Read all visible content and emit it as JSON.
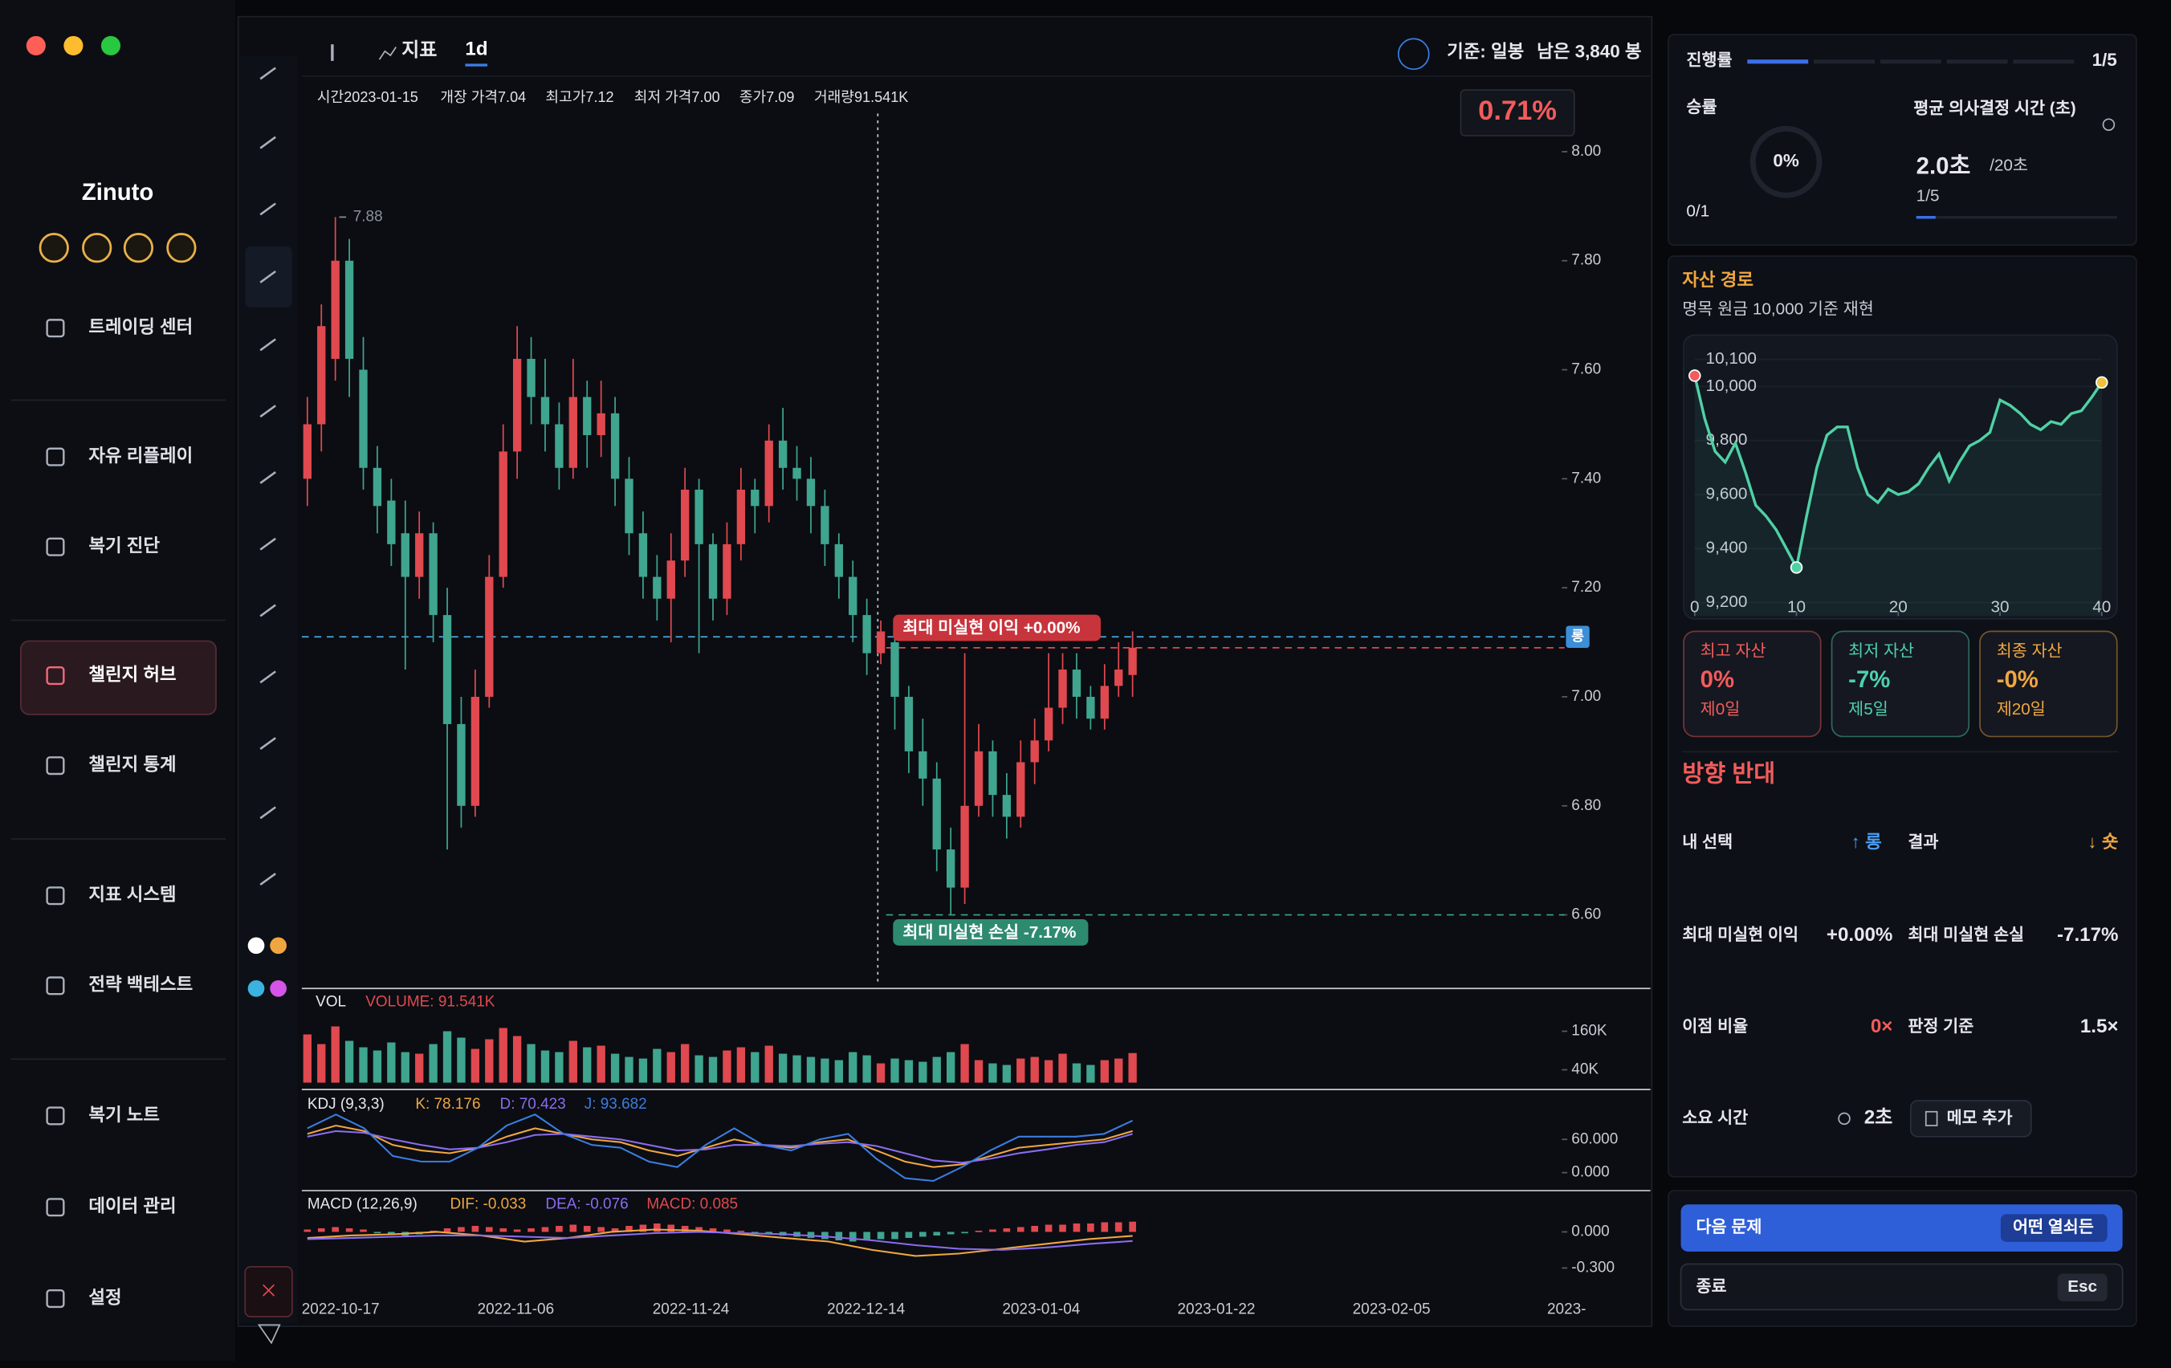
{
  "sidebar": {
    "brand": "Zinuto",
    "nav": [
      "트레이딩 센터",
      "자유 리플레이",
      "복기 진단",
      "챌린지 허브",
      "챌린지 통계",
      "지표 시스템",
      "전략 백테스트",
      "복기 노트",
      "데이터 관리",
      "설정"
    ],
    "active": 3
  },
  "toolbar": {
    "indicator": "지표",
    "interval": "1d",
    "basis": "기준: 일봉",
    "remaining": "남은 3,840 봉"
  },
  "ohlc_info": [
    "시간2023-01-15",
    "개장 가격7.04",
    "최고가7.12",
    "최저 가격7.00",
    "종가7.09",
    "거래량91.541K"
  ],
  "change_badge": "0.71%",
  "price_chart": {
    "type": "candlestick",
    "ylim": [
      6.47,
      8.07
    ],
    "yticks": [
      {
        "value": 8.0,
        "label": "8.00"
      },
      {
        "value": 7.8,
        "label": "7.80"
      },
      {
        "value": 7.6,
        "label": "7.60"
      },
      {
        "value": 7.4,
        "label": "7.40"
      },
      {
        "value": 7.2,
        "label": "7.20"
      },
      {
        "value": 7.0,
        "label": "7.00"
      },
      {
        "value": 6.8,
        "label": "6.80"
      },
      {
        "value": 6.6,
        "label": "6.60"
      }
    ],
    "up_color": "#e0494f",
    "down_color": "#3fa58f",
    "candles": [
      [
        7.4,
        7.55,
        7.35,
        7.5
      ],
      [
        7.5,
        7.72,
        7.45,
        7.68
      ],
      [
        7.62,
        7.88,
        7.58,
        7.8
      ],
      [
        7.8,
        7.84,
        7.55,
        7.62
      ],
      [
        7.6,
        7.66,
        7.38,
        7.42
      ],
      [
        7.42,
        7.46,
        7.3,
        7.35
      ],
      [
        7.36,
        7.4,
        7.24,
        7.28
      ],
      [
        7.3,
        7.36,
        7.05,
        7.22
      ],
      [
        7.22,
        7.34,
        7.18,
        7.3
      ],
      [
        7.3,
        7.32,
        7.1,
        7.15
      ],
      [
        7.15,
        7.2,
        6.72,
        6.95
      ],
      [
        6.95,
        7.0,
        6.76,
        6.8
      ],
      [
        6.8,
        7.05,
        6.78,
        7.0
      ],
      [
        7.0,
        7.26,
        6.98,
        7.22
      ],
      [
        7.22,
        7.5,
        7.2,
        7.45
      ],
      [
        7.45,
        7.68,
        7.4,
        7.62
      ],
      [
        7.62,
        7.66,
        7.5,
        7.55
      ],
      [
        7.55,
        7.62,
        7.45,
        7.5
      ],
      [
        7.5,
        7.54,
        7.38,
        7.42
      ],
      [
        7.42,
        7.62,
        7.4,
        7.55
      ],
      [
        7.55,
        7.58,
        7.42,
        7.48
      ],
      [
        7.48,
        7.58,
        7.44,
        7.52
      ],
      [
        7.52,
        7.55,
        7.35,
        7.4
      ],
      [
        7.4,
        7.44,
        7.26,
        7.3
      ],
      [
        7.3,
        7.34,
        7.18,
        7.22
      ],
      [
        7.22,
        7.26,
        7.14,
        7.18
      ],
      [
        7.18,
        7.3,
        7.1,
        7.25
      ],
      [
        7.25,
        7.42,
        7.22,
        7.38
      ],
      [
        7.38,
        7.4,
        7.08,
        7.28
      ],
      [
        7.28,
        7.3,
        7.14,
        7.18
      ],
      [
        7.18,
        7.32,
        7.15,
        7.28
      ],
      [
        7.28,
        7.42,
        7.25,
        7.38
      ],
      [
        7.38,
        7.4,
        7.3,
        7.35
      ],
      [
        7.35,
        7.5,
        7.32,
        7.47
      ],
      [
        7.47,
        7.53,
        7.38,
        7.42
      ],
      [
        7.42,
        7.46,
        7.36,
        7.4
      ],
      [
        7.4,
        7.44,
        7.3,
        7.35
      ],
      [
        7.35,
        7.38,
        7.24,
        7.28
      ],
      [
        7.28,
        7.3,
        7.18,
        7.22
      ],
      [
        7.22,
        7.25,
        7.1,
        7.15
      ],
      [
        7.15,
        7.18,
        7.04,
        7.08
      ],
      [
        7.08,
        7.14,
        7.06,
        7.12
      ],
      [
        7.1,
        7.12,
        6.94,
        7.0
      ],
      [
        7.0,
        7.02,
        6.86,
        6.9
      ],
      [
        6.9,
        6.96,
        6.8,
        6.85
      ],
      [
        6.85,
        6.88,
        6.68,
        6.72
      ],
      [
        6.72,
        6.76,
        6.6,
        6.65
      ],
      [
        6.65,
        7.08,
        6.62,
        6.8
      ],
      [
        6.8,
        6.95,
        6.78,
        6.9
      ],
      [
        6.9,
        6.92,
        6.78,
        6.82
      ],
      [
        6.82,
        6.86,
        6.74,
        6.78
      ],
      [
        6.78,
        6.92,
        6.76,
        6.88
      ],
      [
        6.88,
        6.96,
        6.84,
        6.92
      ],
      [
        6.92,
        7.08,
        6.9,
        6.98
      ],
      [
        6.98,
        7.08,
        6.95,
        7.05
      ],
      [
        7.05,
        7.08,
        6.96,
        7.0
      ],
      [
        7.0,
        7.02,
        6.94,
        6.96
      ],
      [
        6.96,
        7.06,
        6.94,
        7.02
      ],
      [
        7.02,
        7.1,
        7.0,
        7.05
      ],
      [
        7.04,
        7.12,
        7.0,
        7.09
      ]
    ],
    "high_marker": "7.88",
    "high_marker_value": 7.88,
    "levels": {
      "position": 7.11,
      "entry": 7.09,
      "max_loss": 6.6
    },
    "position_tag": "롱",
    "max_profit_label": "최대 미실현 이익 +0.00%",
    "max_loss_label": "최대 미실현 손실 -7.17%",
    "xticks": [
      "2022-10-17",
      "2022-11-06",
      "2022-11-24",
      "2022-12-14",
      "2023-01-04",
      "2023-01-22",
      "2023-02-05",
      "2023-"
    ]
  },
  "volume_pane": {
    "type": "bar",
    "title": "VOL",
    "legend": "VOLUME: 91.541K",
    "ylim": [
      0,
      280
    ],
    "yticks": [
      {
        "value": 160,
        "label": "160K"
      },
      {
        "value": 40,
        "label": "40K"
      }
    ],
    "values": [
      150,
      120,
      175,
      130,
      110,
      100,
      125,
      95,
      90,
      120,
      160,
      140,
      105,
      135,
      170,
      145,
      120,
      100,
      95,
      130,
      110,
      115,
      90,
      80,
      75,
      105,
      95,
      120,
      85,
      80,
      100,
      110,
      95,
      115,
      90,
      85,
      80,
      75,
      70,
      95,
      85,
      60,
      75,
      70,
      65,
      80,
      95,
      120,
      70,
      60,
      55,
      75,
      80,
      70,
      90,
      60,
      55,
      70,
      75,
      92
    ]
  },
  "kdj_pane": {
    "type": "line",
    "title": "KDJ (9,3,3)",
    "ylim": [
      -27.5,
      142.5
    ],
    "yticks": [
      {
        "value": 60,
        "label": "60.000"
      },
      {
        "value": 0,
        "label": "0.000"
      }
    ],
    "series": [
      {
        "name": "K: 78.176",
        "color": "#f0a640",
        "values": [
          70,
          85,
          75,
          50,
          40,
          35,
          45,
          65,
          80,
          70,
          60,
          55,
          40,
          30,
          45,
          60,
          50,
          45,
          55,
          60,
          40,
          20,
          10,
          15,
          30,
          45,
          50,
          55,
          60,
          75
        ]
      },
      {
        "name": "D: 70.423",
        "color": "#8a6cf0",
        "values": [
          65,
          75,
          72,
          60,
          50,
          42,
          45,
          55,
          68,
          70,
          65,
          60,
          50,
          40,
          42,
          50,
          50,
          48,
          52,
          55,
          48,
          35,
          22,
          18,
          25,
          35,
          42,
          50,
          55,
          70
        ]
      },
      {
        "name": "J: 93.682",
        "color": "#3b7de0",
        "values": [
          80,
          105,
          80,
          30,
          20,
          20,
          45,
          85,
          105,
          70,
          50,
          45,
          20,
          10,
          50,
          80,
          50,
          40,
          60,
          70,
          25,
          -10,
          -15,
          10,
          40,
          65,
          65,
          65,
          70,
          94
        ]
      }
    ]
  },
  "macd_pane": {
    "type": "line",
    "title": "MACD (12,26,9)",
    "ylim": [
      -0.52,
      0.32
    ],
    "yticks": [
      {
        "value": 0,
        "label": "0.000"
      },
      {
        "value": -0.3,
        "label": "-0.300"
      }
    ],
    "series": [
      {
        "name": "DIF: -0.033",
        "color": "#f0a640",
        "values": [
          -0.05,
          -0.03,
          -0.02,
          0.0,
          -0.03,
          -0.08,
          -0.05,
          0.0,
          0.02,
          0.01,
          -0.02,
          -0.05,
          -0.08,
          -0.15,
          -0.2,
          -0.18,
          -0.14,
          -0.1,
          -0.06,
          -0.033
        ]
      },
      {
        "name": "DEA: -0.076",
        "color": "#8a6cf0",
        "values": [
          -0.06,
          -0.05,
          -0.04,
          -0.03,
          -0.03,
          -0.04,
          -0.05,
          -0.03,
          -0.01,
          0.0,
          -0.01,
          -0.02,
          -0.04,
          -0.07,
          -0.11,
          -0.14,
          -0.15,
          -0.13,
          -0.1,
          -0.076
        ]
      }
    ],
    "histogram": {
      "name": "MACD: 0.085",
      "color": "#e0494f",
      "values": [
        0.02,
        0.03,
        0.04,
        0.03,
        0.02,
        -0.01,
        -0.02,
        -0.03,
        -0.02,
        0.01,
        0.03,
        0.04,
        0.05,
        0.04,
        0.03,
        0.02,
        0.03,
        0.04,
        0.05,
        0.06,
        0.05,
        0.04,
        0.03,
        0.05,
        0.06,
        0.07,
        0.06,
        0.05,
        0.04,
        0.03,
        0.02,
        0.01,
        -0.01,
        -0.02,
        -0.03,
        -0.04,
        -0.05,
        -0.06,
        -0.07,
        -0.08,
        -0.07,
        -0.06,
        -0.06,
        -0.05,
        -0.04,
        -0.03,
        -0.02,
        -0.01,
        0.01,
        0.02,
        0.03,
        0.04,
        0.05,
        0.06,
        0.06,
        0.07,
        0.07,
        0.08,
        0.08,
        0.085
      ]
    }
  },
  "progress": {
    "label": "진행률",
    "value": "1/5",
    "steps": 5,
    "done": 1
  },
  "win_rate": {
    "label": "승률",
    "value": "0%",
    "count": "0/1"
  },
  "decision_time": {
    "label": "평균 의사결정 시간 (초)",
    "value": "2.0초",
    "limit": "/20초",
    "count": "1/5"
  },
  "asset_path": {
    "type": "line",
    "title": "자산 경로",
    "subtitle": "명목 원금 10,000 기준 재현",
    "color": "#4fd1a5",
    "xlim": [
      0,
      40
    ],
    "ylim": [
      9150,
      10175
    ],
    "xticks": [
      0,
      10,
      20,
      30,
      40
    ],
    "yticks": [
      {
        "value": 10100,
        "label": "10,100"
      },
      {
        "value": 10000,
        "label": "10,000"
      },
      {
        "value": 9800,
        "label": "9,800"
      },
      {
        "value": 9600,
        "label": "9,600"
      },
      {
        "value": 9400,
        "label": "9,400"
      },
      {
        "value": 9200,
        "label": "9,200"
      }
    ],
    "values": [
      10040,
      9880,
      9760,
      9720,
      9790,
      9680,
      9560,
      9520,
      9470,
      9400,
      9330,
      9520,
      9700,
      9820,
      9850,
      9850,
      9700,
      9600,
      9570,
      9620,
      9600,
      9610,
      9640,
      9700,
      9750,
      9650,
      9720,
      9780,
      9800,
      9830,
      9950,
      9930,
      9900,
      9860,
      9840,
      9870,
      9860,
      9900,
      9910,
      9960,
      10015
    ]
  },
  "cards": [
    {
      "title": "최고 자산",
      "value": "0%",
      "day": "제0일",
      "color": "#f25c5c"
    },
    {
      "title": "최저 자산",
      "value": "-7%",
      "day": "제5일",
      "color": "#4dd0b0"
    },
    {
      "title": "최종 자산",
      "value": "-0%",
      "day": "제20일",
      "color": "#f0a640"
    }
  ],
  "verdict": "방향 반대",
  "details": {
    "my_pick_label": "내 선택",
    "my_pick": "↑ 롱",
    "result_label": "결과",
    "result": "↓ 숏",
    "max_profit_label": "최대 미실현 이익",
    "max_profit": "+0.00%",
    "max_loss_label": "최대 미실현 손실",
    "max_loss": "-7.17%",
    "edge_label": "이점 비율",
    "edge": "0×",
    "criterion_label": "판정 기준",
    "criterion": "1.5×",
    "time_label": "소요 시간",
    "time": "2초",
    "memo": "메모 추가"
  },
  "actions": {
    "next": "다음 문제",
    "next_key": "어떤 열쇠든",
    "quit": "종료",
    "quit_key": "Esc"
  }
}
